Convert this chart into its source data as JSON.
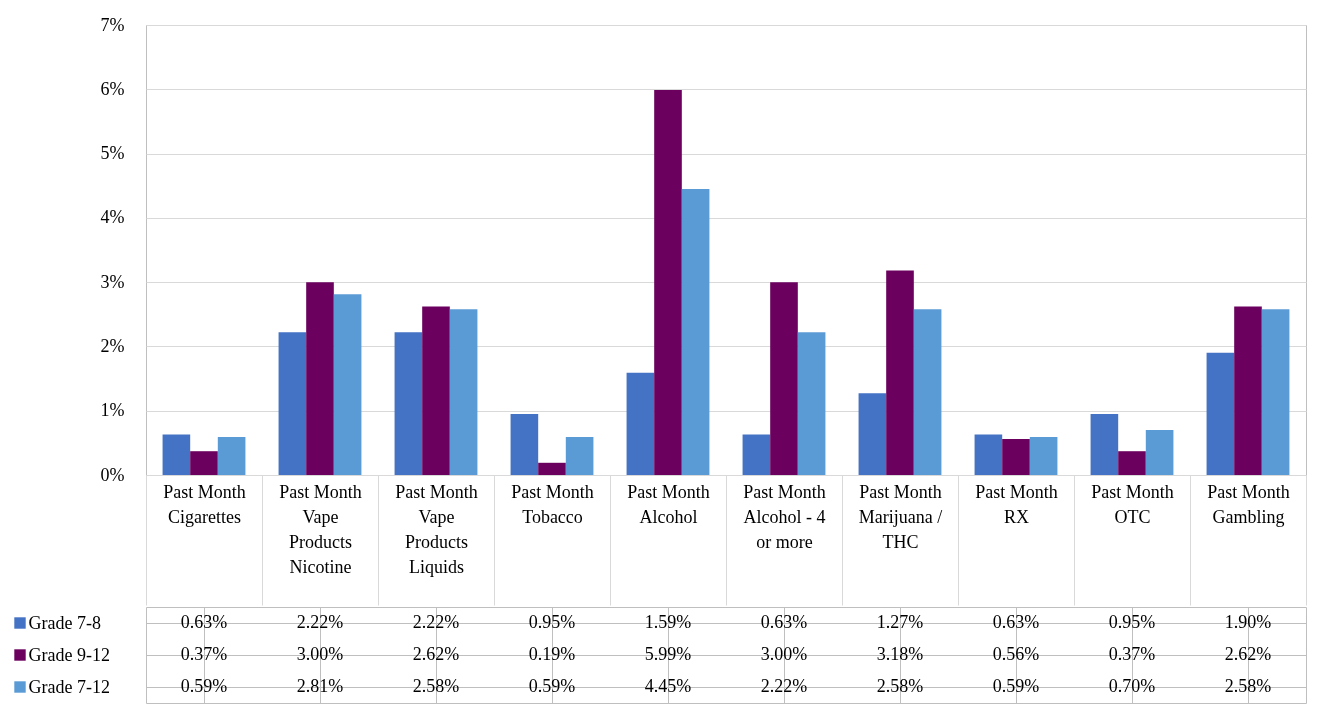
{
  "chart_data": {
    "type": "bar",
    "categories": [
      "Past Month\nCigarettes",
      "Past Month\nVape Products Nicotine",
      "Past Month\nVape Products Liquids",
      "Past Month\nTobacco",
      "Past Month\nAlcohol",
      "Past Month\nAlcohol - 4 or more",
      "Past Month\nMarijuana / THC",
      "Past Month\nRX",
      "Past Month\nOTC",
      "Past Month\nGambling"
    ],
    "series": [
      {
        "name": "Grade  7-8",
        "color": "#4472c4",
        "values": [
          0.63,
          2.22,
          2.22,
          0.95,
          1.59,
          0.63,
          1.27,
          0.63,
          0.95,
          1.9
        ],
        "value_labels": [
          "0.63%",
          "2.22%",
          "2.22%",
          "0.95%",
          "1.59%",
          "0.63%",
          "1.27%",
          "0.63%",
          "0.95%",
          "1.90%"
        ]
      },
      {
        "name": "Grade  9-12",
        "color": "#6b005e",
        "values": [
          0.37,
          3.0,
          2.62,
          0.19,
          5.99,
          3.0,
          3.18,
          0.56,
          0.37,
          2.62
        ],
        "value_labels": [
          "0.37%",
          "3.00%",
          "2.62%",
          "0.19%",
          "5.99%",
          "3.00%",
          "3.18%",
          "0.56%",
          "0.37%",
          "2.62%"
        ]
      },
      {
        "name": "Grade  7-12",
        "color": "#5b9bd5",
        "values": [
          0.59,
          2.81,
          2.58,
          0.59,
          4.45,
          2.22,
          2.58,
          0.59,
          0.7,
          2.58
        ],
        "value_labels": [
          "0.59%",
          "2.81%",
          "2.58%",
          "0.59%",
          "4.45%",
          "2.22%",
          "2.58%",
          "0.59%",
          "0.70%",
          "2.58%"
        ]
      }
    ],
    "ylim": [
      0,
      7
    ],
    "yticks": [
      {
        "value": 0,
        "label": "0%"
      },
      {
        "value": 1,
        "label": "1%"
      },
      {
        "value": 2,
        "label": "2%"
      },
      {
        "value": 3,
        "label": "3%"
      },
      {
        "value": 4,
        "label": "4%"
      },
      {
        "value": 5,
        "label": "5%"
      },
      {
        "value": 6,
        "label": "6%"
      },
      {
        "value": 7,
        "label": "7%"
      }
    ],
    "grid": "y",
    "legend": "bottom left"
  }
}
